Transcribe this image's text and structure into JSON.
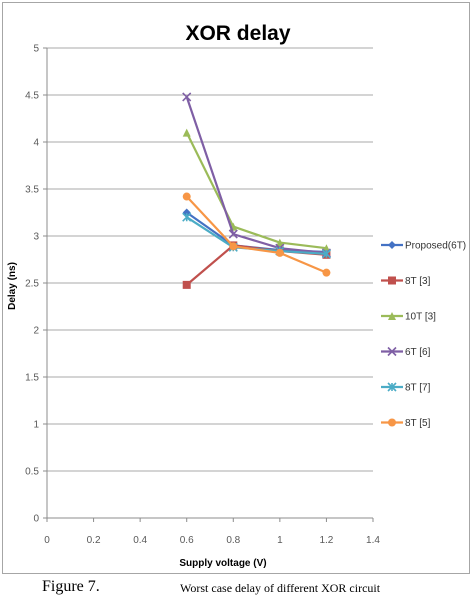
{
  "chart_data": {
    "type": "line",
    "title": "XOR delay",
    "xlabel": "Supply voltage (V)",
    "ylabel": "Delay (ns)",
    "xlim": [
      0,
      1.4
    ],
    "ylim": [
      0,
      5
    ],
    "xticks": [
      "0",
      "0.2",
      "0.4",
      "0.6",
      "0.8",
      "1",
      "1.2",
      "1.4"
    ],
    "yticks": [
      "0",
      "0.5",
      "1",
      "1.5",
      "2",
      "2.5",
      "3",
      "3.5",
      "4",
      "4.5",
      "5"
    ],
    "grid": true,
    "legend_position": "right",
    "x": [
      0.6,
      0.8,
      1.0,
      1.2
    ],
    "series": [
      {
        "name": "Proposed(6T)",
        "values": [
          3.25,
          2.9,
          2.85,
          2.83
        ],
        "color": "#4472c4",
        "marker": "diamond"
      },
      {
        "name": "8T [3]",
        "values": [
          2.48,
          2.9,
          2.84,
          2.8
        ],
        "color": "#c0504d",
        "marker": "square"
      },
      {
        "name": "10T [3]",
        "values": [
          4.1,
          3.1,
          2.93,
          2.87
        ],
        "color": "#9bbb59",
        "marker": "triangle"
      },
      {
        "name": "6T [6]",
        "values": [
          4.48,
          3.02,
          2.87,
          2.82
        ],
        "color": "#7f5fa5",
        "marker": "x"
      },
      {
        "name": "8T [7]",
        "values": [
          3.2,
          2.88,
          2.84,
          2.81
        ],
        "color": "#4bacc6",
        "marker": "star"
      },
      {
        "name": "8T [5]",
        "values": [
          3.42,
          2.89,
          2.82,
          2.61
        ],
        "color": "#f79646",
        "marker": "circle"
      }
    ]
  },
  "caption": {
    "label": "Figure 7.",
    "text": "Worst case delay of different XOR circuit"
  }
}
